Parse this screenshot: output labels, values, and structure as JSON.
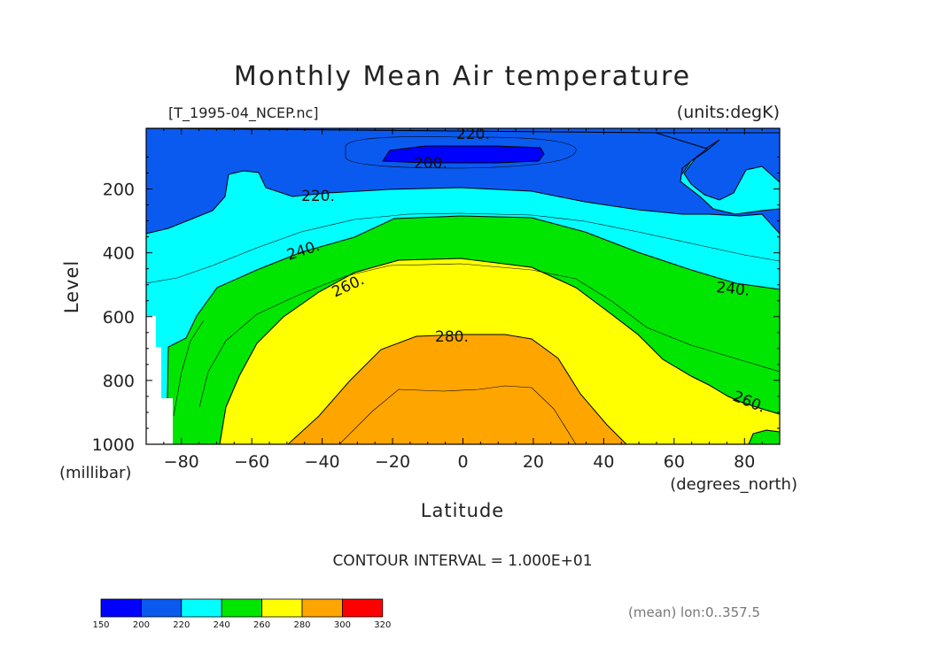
{
  "chart_data": {
    "type": "contour",
    "title": "Monthly Mean Air temperature",
    "file_label": "[T_1995-04_NCEP.nc]",
    "units_label": "(units:degK)",
    "xlabel": "Latitude",
    "x_units": "(degrees_north)",
    "ylabel": "Level",
    "y_units": "(millibar)",
    "xlim": [
      -90,
      90
    ],
    "ylim": [
      1000,
      10
    ],
    "x_ticks": [
      -80,
      -60,
      -40,
      -20,
      0,
      20,
      40,
      60,
      80
    ],
    "x_tick_labels": [
      "−80",
      "−60",
      "−40",
      "−20",
      "0",
      "20",
      "40",
      "60",
      "80"
    ],
    "y_ticks": [
      200,
      400,
      600,
      800,
      1000
    ],
    "y_tick_labels": [
      "200",
      "400",
      "600",
      "800",
      "1000"
    ],
    "contour_interval_text": "CONTOUR INTERVAL = 1.000E+01",
    "footnote": "(mean) lon:0..357.5",
    "contour_labels": [
      "220.",
      "200.",
      "220.",
      "240.",
      "260.",
      "280.",
      "240.",
      "260."
    ],
    "colorbar": {
      "levels": [
        150,
        200,
        220,
        240,
        260,
        280,
        300,
        320
      ],
      "tick_labels": [
        "150",
        "200",
        "220",
        "240",
        "260",
        "280",
        "300",
        "320"
      ],
      "colors": [
        "#0000ff",
        "#0a5af0",
        "#00ffff",
        "#00e600",
        "#ffff00",
        "#ffa500",
        "#ff0000"
      ]
    }
  }
}
